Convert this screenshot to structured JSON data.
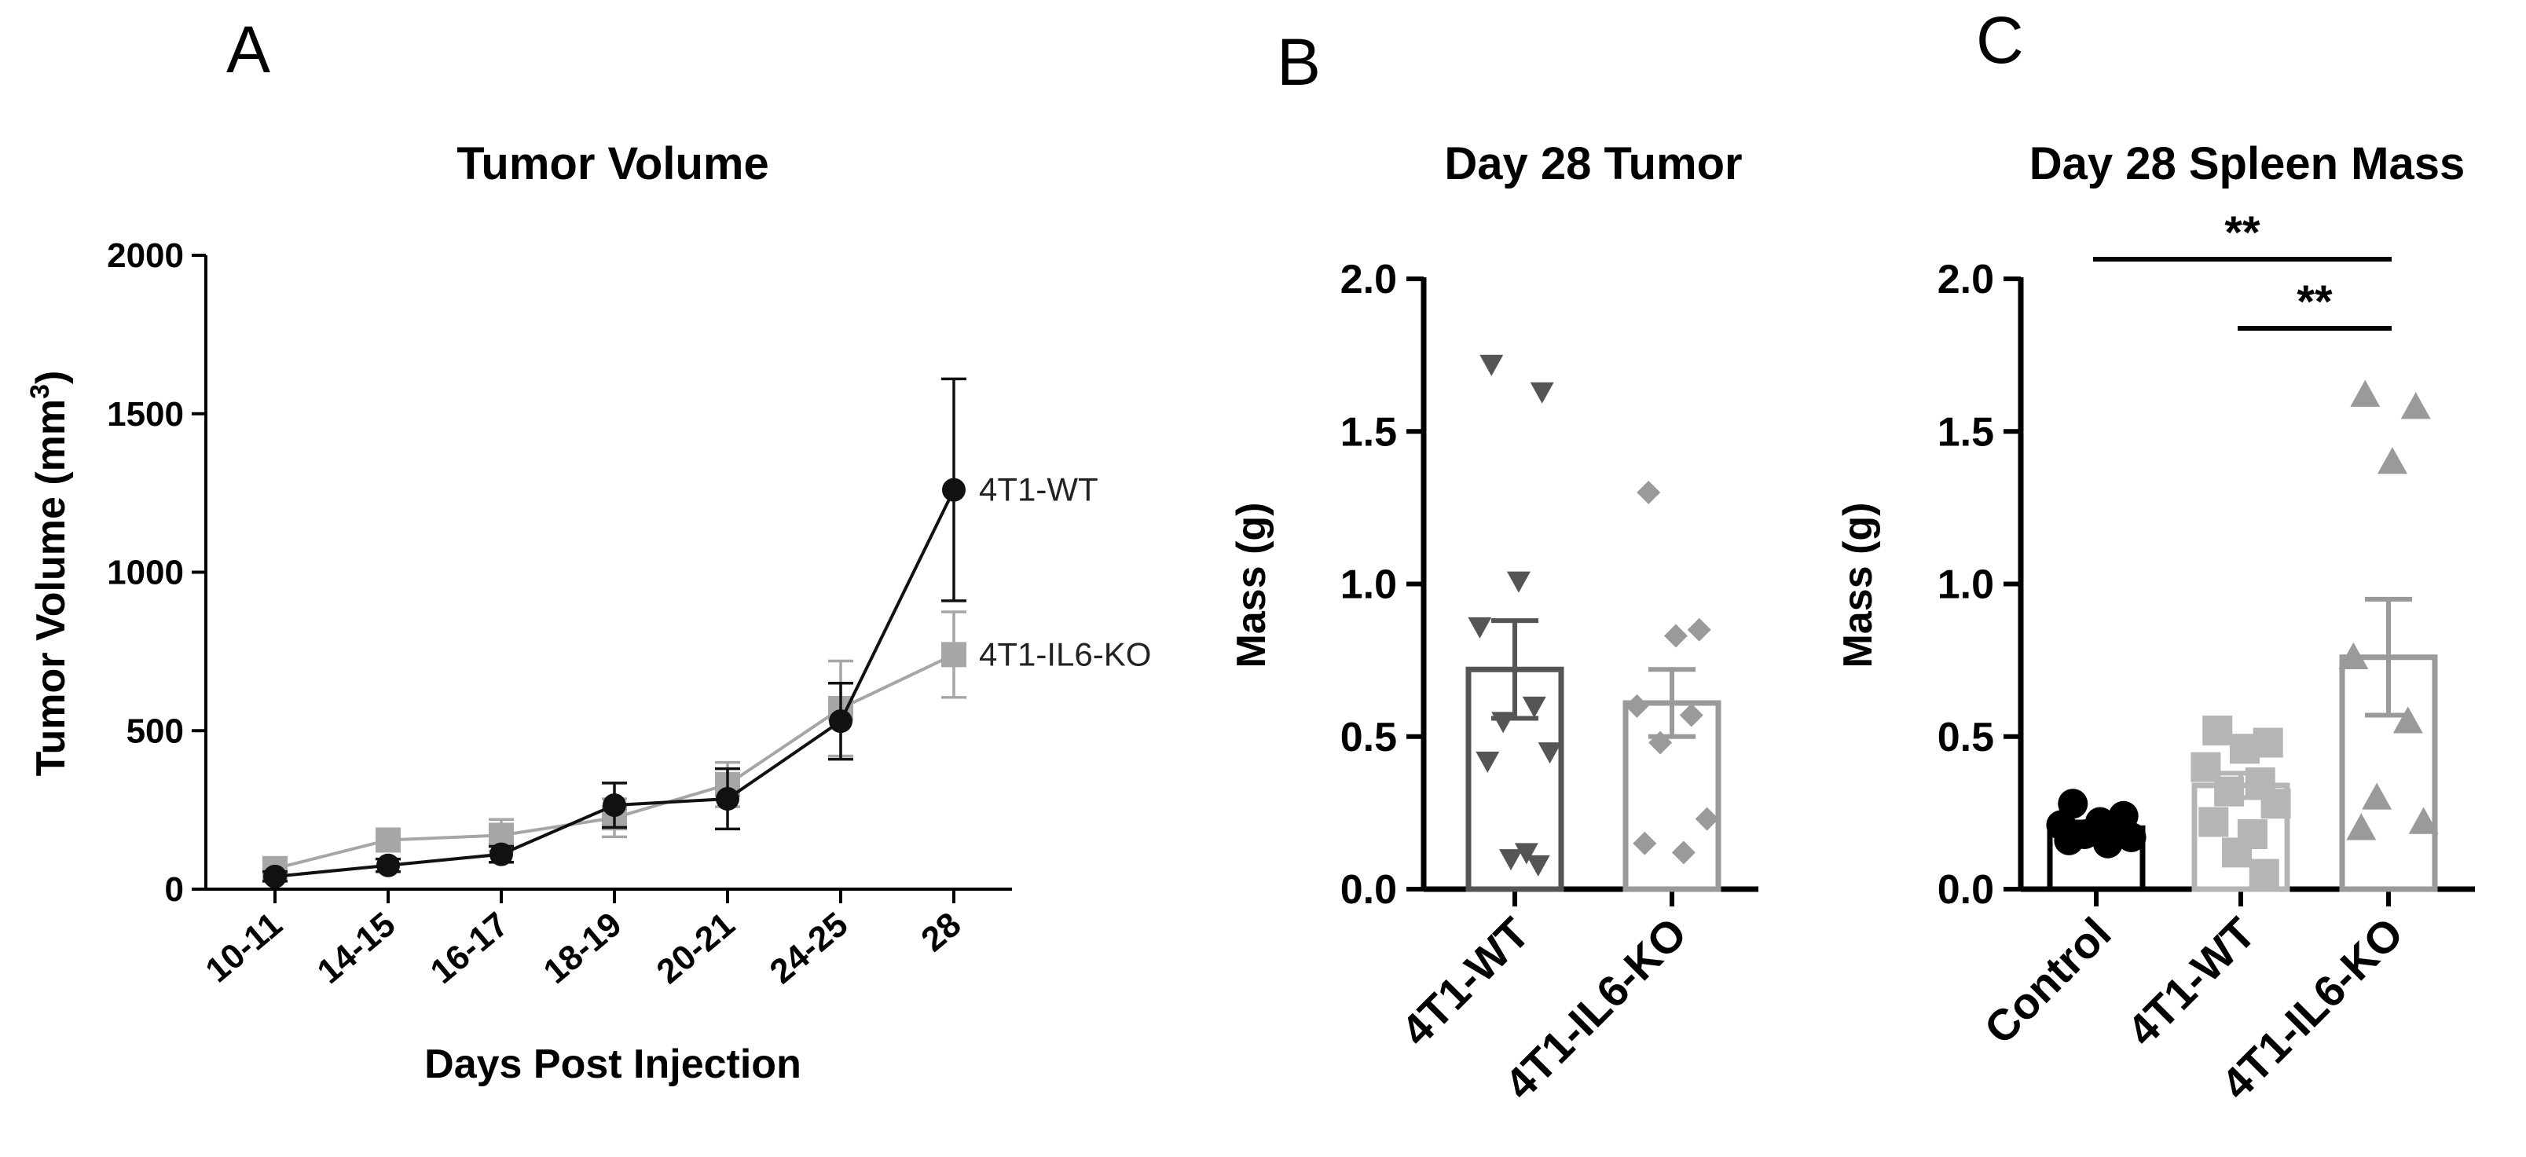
{
  "panels": {
    "a": {
      "letter": "A"
    },
    "b": {
      "letter": "B"
    },
    "c": {
      "letter": "C"
    }
  },
  "colors": {
    "wt": "#111111",
    "ko": "#a6a6a6",
    "wt_bar": "#555555",
    "ko_bar": "#9a9a9a",
    "control": "#000000",
    "spleen_wt": "#b5b5b5",
    "spleen_ko": "#9a9a9a"
  },
  "chart_data": [
    {
      "type": "line",
      "title": "Tumor Volume",
      "xlabel": "Days Post Injection",
      "ylabel": "Tumor Volume (mm",
      "ylabel_sup": "3",
      "ylabel_close": ")",
      "categories": [
        "10-11",
        "14-15",
        "16-17",
        "18-19",
        "20-21",
        "24-25",
        "28"
      ],
      "ylim": [
        0,
        2000
      ],
      "yticks": [
        0,
        500,
        1000,
        1500,
        2000
      ],
      "series": [
        {
          "name": "4T1-WT",
          "marker": "circle",
          "values": [
            40,
            75,
            110,
            265,
            285,
            530,
            1260
          ],
          "errors": [
            15,
            20,
            25,
            70,
            95,
            120,
            350
          ]
        },
        {
          "name": "4T1-IL6-KO",
          "marker": "square",
          "values": [
            65,
            155,
            170,
            225,
            330,
            570,
            740
          ],
          "errors": [
            20,
            30,
            50,
            60,
            70,
            150,
            135
          ]
        }
      ]
    },
    {
      "type": "bar",
      "title": "Day 28 Tumor",
      "ylabel": "Mass (g)",
      "categories": [
        "4T1-WT",
        "4T1-IL6-KO"
      ],
      "ylim": [
        0,
        2.0
      ],
      "yticks": [
        "0.0",
        "0.5",
        "1.0",
        "1.5",
        "2.0"
      ],
      "series": [
        {
          "name": "4T1-WT",
          "marker": "triangle-down",
          "mean": 0.72,
          "sem": 0.16,
          "points": [
            1.72,
            1.63,
            1.01,
            0.86,
            0.6,
            0.55,
            0.45,
            0.42,
            0.12,
            0.1,
            0.08
          ]
        },
        {
          "name": "4T1-IL6-KO",
          "marker": "diamond",
          "mean": 0.61,
          "sem": 0.11,
          "points": [
            1.3,
            0.85,
            0.83,
            0.6,
            0.57,
            0.48,
            0.23,
            0.15,
            0.12
          ]
        }
      ]
    },
    {
      "type": "bar",
      "title": "Day 28 Spleen Mass",
      "ylabel": "Mass (g)",
      "categories": [
        "Control",
        "4T1-WT",
        "4T1-IL6-KO"
      ],
      "ylim": [
        0,
        2.0
      ],
      "yticks": [
        "0.0",
        "0.5",
        "1.0",
        "1.5",
        "2.0"
      ],
      "series": [
        {
          "name": "Control",
          "marker": "circle",
          "mean": 0.2,
          "sem": 0.02,
          "points": [
            0.28,
            0.24,
            0.22,
            0.21,
            0.2,
            0.18,
            0.17,
            0.16,
            0.15
          ]
        },
        {
          "name": "4T1-WT",
          "marker": "square",
          "mean": 0.34,
          "sem": 0.04,
          "points": [
            0.52,
            0.48,
            0.46,
            0.4,
            0.35,
            0.32,
            0.28,
            0.22,
            0.18,
            0.12,
            0.05
          ]
        },
        {
          "name": "4T1-IL6-KO",
          "marker": "triangle-up",
          "mean": 0.76,
          "sem": 0.19,
          "points": [
            1.62,
            1.58,
            1.4,
            0.76,
            0.55,
            0.3,
            0.22,
            0.2
          ]
        }
      ],
      "significance": [
        {
          "from": "Control",
          "to": "4T1-IL6-KO",
          "label": "**"
        },
        {
          "from": "4T1-WT",
          "to": "4T1-IL6-KO",
          "label": "**"
        }
      ]
    }
  ]
}
